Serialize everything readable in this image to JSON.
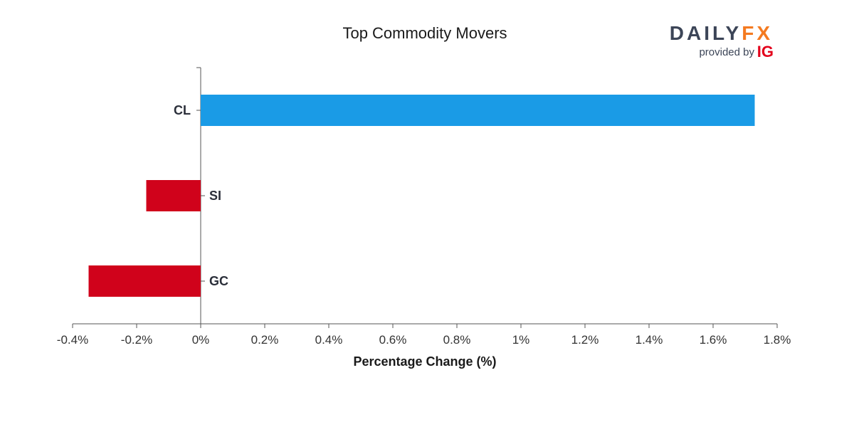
{
  "chart_data": {
    "type": "bar",
    "orientation": "horizontal",
    "title": "Top Commodity Movers",
    "xlabel": "Percentage Change (%)",
    "categories": [
      "CL",
      "SI",
      "GC"
    ],
    "values": [
      1.73,
      -0.17,
      -0.35
    ],
    "xlim": [
      -0.4,
      1.8
    ],
    "ticks": [
      -0.4,
      -0.2,
      0,
      0.2,
      0.4,
      0.6,
      0.8,
      1.0,
      1.2,
      1.4,
      1.6,
      1.8
    ],
    "tick_labels": [
      "-0.4%",
      "-0.2%",
      "0%",
      "0.2%",
      "0.4%",
      "0.6%",
      "0.8%",
      "1%",
      "1.2%",
      "1.4%",
      "1.6%",
      "1.8%"
    ],
    "colors": {
      "positive": "#1a9be6",
      "negative": "#d0021b"
    },
    "grid": false,
    "legend": "none"
  },
  "branding": {
    "logo_daily": "DAILY",
    "logo_fx": "FX",
    "provided_by": "provided by",
    "ig": "IG"
  }
}
